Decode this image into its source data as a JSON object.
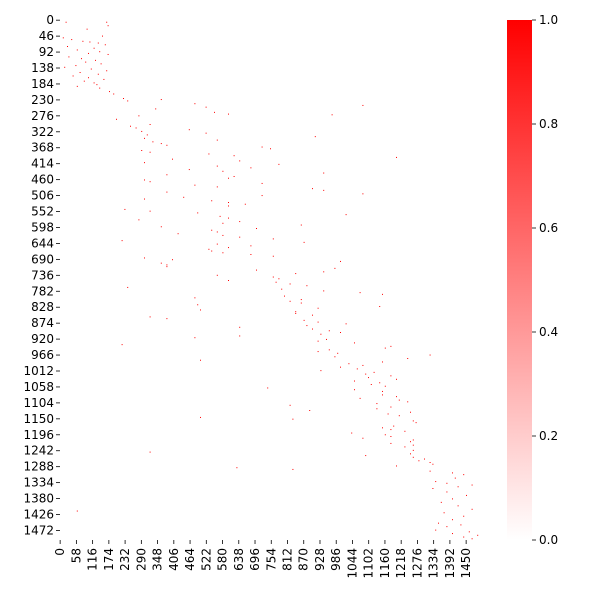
{
  "chart_data": {
    "type": "heatmap",
    "title": "",
    "xlabel": "",
    "ylabel": "",
    "n_rows": 1500,
    "n_cols": 1500,
    "x_ticks": [
      0,
      58,
      116,
      174,
      232,
      290,
      348,
      406,
      464,
      522,
      580,
      638,
      696,
      754,
      812,
      870,
      928,
      986,
      1044,
      1102,
      1160,
      1218,
      1276,
      1334,
      1392,
      1450
    ],
    "y_ticks": [
      0,
      46,
      92,
      138,
      184,
      230,
      276,
      322,
      368,
      414,
      460,
      506,
      552,
      598,
      644,
      690,
      736,
      782,
      828,
      874,
      920,
      966,
      1012,
      1058,
      1104,
      1150,
      1196,
      1242,
      1288,
      1334,
      1380,
      1426,
      1472
    ],
    "colorbar": {
      "min": 0.0,
      "max": 1.0,
      "ticks": [
        0.0,
        0.2,
        0.4,
        0.6,
        0.8,
        1.0
      ],
      "color_low": "#ffffff",
      "color_high": "#ff0000"
    },
    "value_nonzero": 1.0,
    "nonzero_cells": [
      [
        5,
        20
      ],
      [
        5,
        165
      ],
      [
        25,
        95
      ],
      [
        15,
        170
      ],
      [
        45,
        150
      ],
      [
        50,
        10
      ],
      [
        55,
        40
      ],
      [
        60,
        80
      ],
      [
        62,
        105
      ],
      [
        65,
        135
      ],
      [
        70,
        160
      ],
      [
        75,
        25
      ],
      [
        80,
        120
      ],
      [
        85,
        60
      ],
      [
        90,
        140
      ],
      [
        95,
        100
      ],
      [
        98,
        170
      ],
      [
        105,
        30
      ],
      [
        110,
        75
      ],
      [
        115,
        125
      ],
      [
        120,
        90
      ],
      [
        125,
        145
      ],
      [
        130,
        55
      ],
      [
        135,
        15
      ],
      [
        140,
        110
      ],
      [
        145,
        165
      ],
      [
        150,
        70
      ],
      [
        155,
        135
      ],
      [
        160,
        45
      ],
      [
        165,
        100
      ],
      [
        170,
        155
      ],
      [
        175,
        85
      ],
      [
        180,
        120
      ],
      [
        185,
        130
      ],
      [
        190,
        60
      ],
      [
        195,
        140
      ],
      [
        205,
        175
      ],
      [
        212,
        190
      ],
      [
        225,
        225
      ],
      [
        228,
        360
      ],
      [
        232,
        240
      ],
      [
        240,
        480
      ],
      [
        245,
        1080
      ],
      [
        250,
        520
      ],
      [
        255,
        340
      ],
      [
        265,
        550
      ],
      [
        270,
        600
      ],
      [
        272,
        970
      ],
      [
        275,
        280
      ],
      [
        285,
        200
      ],
      [
        300,
        320
      ],
      [
        305,
        250
      ],
      [
        310,
        270
      ],
      [
        315,
        460
      ],
      [
        320,
        290
      ],
      [
        325,
        520
      ],
      [
        330,
        310
      ],
      [
        335,
        910
      ],
      [
        340,
        300
      ],
      [
        345,
        560
      ],
      [
        350,
        330
      ],
      [
        355,
        360
      ],
      [
        360,
        380
      ],
      [
        365,
        720
      ],
      [
        370,
        750
      ],
      [
        375,
        290
      ],
      [
        380,
        320
      ],
      [
        385,
        530
      ],
      [
        390,
        620
      ],
      [
        395,
        1200
      ],
      [
        400,
        400
      ],
      [
        405,
        640
      ],
      [
        410,
        300
      ],
      [
        415,
        780
      ],
      [
        420,
        560
      ],
      [
        425,
        680
      ],
      [
        430,
        460
      ],
      [
        435,
        580
      ],
      [
        440,
        940
      ],
      [
        445,
        380
      ],
      [
        450,
        620
      ],
      [
        455,
        600
      ],
      [
        460,
        300
      ],
      [
        465,
        320
      ],
      [
        470,
        720
      ],
      [
        475,
        480
      ],
      [
        480,
        560
      ],
      [
        485,
        900
      ],
      [
        490,
        940
      ],
      [
        495,
        380
      ],
      [
        500,
        1080
      ],
      [
        505,
        720
      ],
      [
        510,
        440
      ],
      [
        515,
        300
      ],
      [
        520,
        540
      ],
      [
        525,
        600
      ],
      [
        530,
        660
      ],
      [
        535,
        600
      ],
      [
        545,
        230
      ],
      [
        550,
        320
      ],
      [
        555,
        490
      ],
      [
        560,
        1020
      ],
      [
        565,
        570
      ],
      [
        570,
        600
      ],
      [
        575,
        280
      ],
      [
        580,
        640
      ],
      [
        585,
        580
      ],
      [
        590,
        860
      ],
      [
        595,
        360
      ],
      [
        600,
        700
      ],
      [
        605,
        540
      ],
      [
        610,
        560
      ],
      [
        615,
        420
      ],
      [
        620,
        580
      ],
      [
        625,
        640
      ],
      [
        630,
        760
      ],
      [
        635,
        220
      ],
      [
        640,
        870
      ],
      [
        645,
        560
      ],
      [
        650,
        680
      ],
      [
        655,
        600
      ],
      [
        660,
        530
      ],
      [
        665,
        540
      ],
      [
        670,
        580
      ],
      [
        675,
        680
      ],
      [
        680,
        760
      ],
      [
        685,
        300
      ],
      [
        690,
        400
      ],
      [
        695,
        1000
      ],
      [
        700,
        360
      ],
      [
        705,
        380
      ],
      [
        710,
        380
      ],
      [
        715,
        980
      ],
      [
        720,
        700
      ],
      [
        725,
        940
      ],
      [
        730,
        840
      ],
      [
        735,
        560
      ],
      [
        740,
        760
      ],
      [
        745,
        780
      ],
      [
        750,
        600
      ],
      [
        755,
        770
      ],
      [
        760,
        820
      ],
      [
        765,
        880
      ],
      [
        770,
        240
      ],
      [
        775,
        790
      ],
      [
        780,
        940
      ],
      [
        785,
        1070
      ],
      [
        790,
        1150
      ],
      [
        795,
        800
      ],
      [
        800,
        480
      ],
      [
        805,
        860
      ],
      [
        810,
        820
      ],
      [
        815,
        860
      ],
      [
        820,
        490
      ],
      [
        825,
        1140
      ],
      [
        830,
        920
      ],
      [
        835,
        500
      ],
      [
        840,
        840
      ],
      [
        845,
        840
      ],
      [
        850,
        900
      ],
      [
        855,
        320
      ],
      [
        860,
        380
      ],
      [
        865,
        870
      ],
      [
        870,
        920
      ],
      [
        875,
        1020
      ],
      [
        880,
        880
      ],
      [
        885,
        640
      ],
      [
        890,
        900
      ],
      [
        895,
        960
      ],
      [
        900,
        1000
      ],
      [
        905,
        930
      ],
      [
        910,
        640
      ],
      [
        915,
        480
      ],
      [
        920,
        950
      ],
      [
        925,
        920
      ],
      [
        930,
        1050
      ],
      [
        935,
        220
      ],
      [
        940,
        1180
      ],
      [
        945,
        1160
      ],
      [
        950,
        960
      ],
      [
        955,
        920
      ],
      [
        960,
        990
      ],
      [
        965,
        1320
      ],
      [
        970,
        980
      ],
      [
        975,
        1240
      ],
      [
        980,
        500
      ],
      [
        985,
        1150
      ],
      [
        990,
        1030
      ],
      [
        995,
        1080
      ],
      [
        1000,
        1000
      ],
      [
        1005,
        1060
      ],
      [
        1010,
        930
      ],
      [
        1015,
        1120
      ],
      [
        1020,
        1090
      ],
      [
        1025,
        1180
      ],
      [
        1030,
        1100
      ],
      [
        1035,
        1200
      ],
      [
        1040,
        1050
      ],
      [
        1045,
        1140
      ],
      [
        1050,
        1110
      ],
      [
        1055,
        1160
      ],
      [
        1060,
        740
      ],
      [
        1065,
        1050
      ],
      [
        1070,
        1150
      ],
      [
        1080,
        1150
      ],
      [
        1085,
        1200
      ],
      [
        1090,
        1070
      ],
      [
        1095,
        1210
      ],
      [
        1100,
        1240
      ],
      [
        1105,
        1130
      ],
      [
        1110,
        820
      ],
      [
        1115,
        1180
      ],
      [
        1120,
        1130
      ],
      [
        1125,
        890
      ],
      [
        1130,
        1250
      ],
      [
        1135,
        1170
      ],
      [
        1140,
        1210
      ],
      [
        1145,
        500
      ],
      [
        1150,
        830
      ],
      [
        1155,
        1260
      ],
      [
        1160,
        1270
      ],
      [
        1170,
        1190
      ],
      [
        1175,
        1150
      ],
      [
        1180,
        1180
      ],
      [
        1185,
        1230
      ],
      [
        1190,
        1040
      ],
      [
        1195,
        1160
      ],
      [
        1200,
        1180
      ],
      [
        1205,
        1080
      ],
      [
        1210,
        1260
      ],
      [
        1215,
        1250
      ],
      [
        1220,
        1180
      ],
      [
        1225,
        1260
      ],
      [
        1230,
        1230
      ],
      [
        1240,
        1260
      ],
      [
        1245,
        320
      ],
      [
        1250,
        1250
      ],
      [
        1255,
        1090
      ],
      [
        1260,
        1260
      ],
      [
        1265,
        1300
      ],
      [
        1270,
        1280
      ],
      [
        1275,
        1320
      ],
      [
        1280,
        1330
      ],
      [
        1285,
        1200
      ],
      [
        1290,
        630
      ],
      [
        1295,
        830
      ],
      [
        1300,
        1320
      ],
      [
        1305,
        1400
      ],
      [
        1310,
        1440
      ],
      [
        1320,
        1410
      ],
      [
        1330,
        1340
      ],
      [
        1335,
        1380
      ],
      [
        1340,
        1470
      ],
      [
        1345,
        1420
      ],
      [
        1350,
        1330
      ],
      [
        1360,
        1380
      ],
      [
        1370,
        1450
      ],
      [
        1380,
        1400
      ],
      [
        1390,
        1360
      ],
      [
        1400,
        1420
      ],
      [
        1410,
        1470
      ],
      [
        1415,
        60
      ],
      [
        1420,
        1370
      ],
      [
        1430,
        1440
      ],
      [
        1440,
        1400
      ],
      [
        1450,
        1350
      ],
      [
        1455,
        1430
      ],
      [
        1460,
        1380
      ],
      [
        1470,
        1340
      ],
      [
        1475,
        1460
      ],
      [
        1480,
        1400
      ],
      [
        1485,
        1490
      ],
      [
        1490,
        1440
      ],
      [
        1495,
        1470
      ]
    ]
  }
}
